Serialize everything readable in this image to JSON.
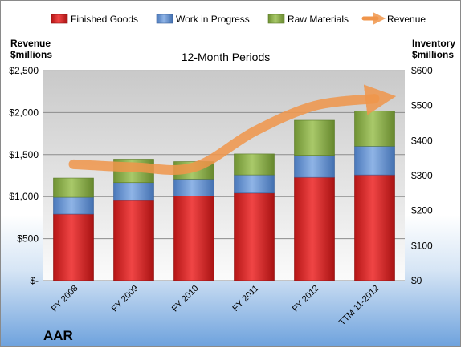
{
  "company": "AAR",
  "chart_data": {
    "type": "bar",
    "stacked": true,
    "title": "12-Month Periods",
    "categories": [
      "FY 2008",
      "FY 2009",
      "FY 2010",
      "FY 2011",
      "FY 2012",
      "TTM 11-2012"
    ],
    "series": [
      {
        "name": "Finished Goods",
        "axis": "right",
        "color": "#e02020",
        "values": [
          190,
          229,
          242,
          250,
          295,
          302
        ]
      },
      {
        "name": "Work in Progress",
        "axis": "right",
        "color": "#5a8ad2",
        "values": [
          48,
          51,
          48,
          52,
          63,
          82
        ]
      },
      {
        "name": "Raw Materials",
        "axis": "right",
        "color": "#8db04a",
        "values": [
          55,
          67,
          50,
          60,
          100,
          100
        ]
      },
      {
        "name": "Revenue",
        "axis": "left",
        "type": "line",
        "color": "#f0954a",
        "values": [
          1385,
          1350,
          1350,
          1775,
          2080,
          2165
        ]
      }
    ],
    "left_axis": {
      "label_line1": "Revenue",
      "label_line2": "$millions",
      "min": 0,
      "max": 2500,
      "ticks": [
        0,
        500,
        1000,
        1500,
        2000,
        2500
      ],
      "tick_labels": [
        "$-",
        "$500",
        "$1,000",
        "$1,500",
        "$2,000",
        "$2,500"
      ]
    },
    "right_axis": {
      "label_line1": "Inventory",
      "label_line2": "$millions",
      "min": 0,
      "max": 600,
      "ticks": [
        0,
        100,
        200,
        300,
        400,
        500,
        600
      ],
      "tick_labels": [
        "$0",
        "$100",
        "$200",
        "$300",
        "$400",
        "$500",
        "$600"
      ]
    },
    "grid": true,
    "legend_position": "top"
  }
}
